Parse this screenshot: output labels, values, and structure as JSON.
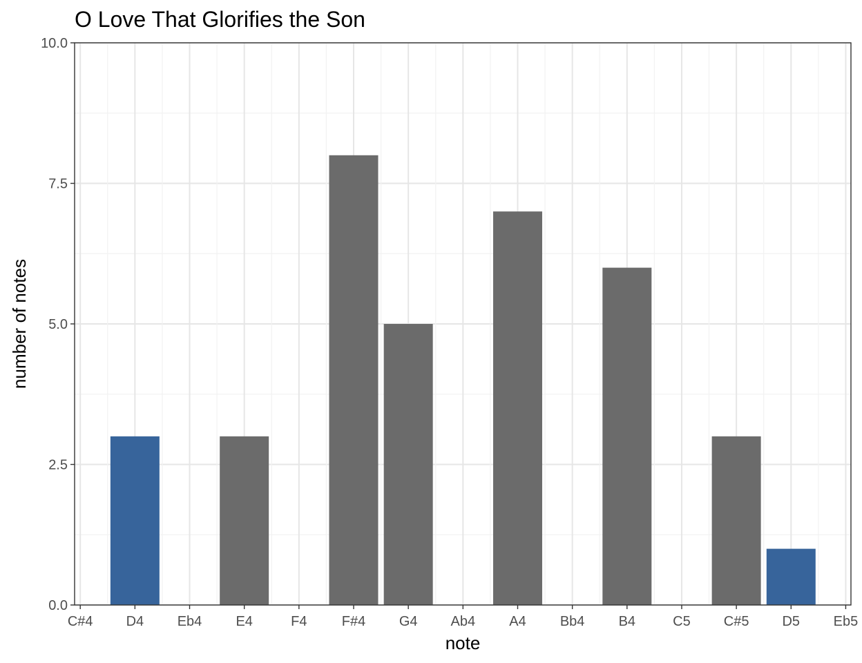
{
  "chart_data": {
    "type": "bar",
    "title": "O Love That Glorifies the Son",
    "xlabel": "note",
    "ylabel": "number of notes",
    "categories": [
      "C#4",
      "D4",
      "Eb4",
      "E4",
      "F4",
      "F#4",
      "G4",
      "Ab4",
      "A4",
      "Bb4",
      "B4",
      "C5",
      "C#5",
      "D5",
      "Eb5"
    ],
    "values": [
      0,
      3,
      0,
      3,
      0,
      8,
      5,
      0,
      7,
      0,
      6,
      0,
      3,
      1,
      0
    ],
    "highlighted": [
      false,
      true,
      false,
      false,
      false,
      false,
      false,
      false,
      false,
      false,
      false,
      false,
      false,
      true,
      false
    ],
    "ylim": [
      0,
      10
    ],
    "y_ticks": [
      0.0,
      2.5,
      5.0,
      7.5,
      10.0
    ],
    "y_tick_labels": [
      "0.0",
      "2.5",
      "5.0",
      "7.5",
      "10.0"
    ],
    "grid": true,
    "legend": "none",
    "colors": {
      "bar_default": "#6b6b6b",
      "bar_highlight": "#37649b",
      "grid_major": "#e6e6e6",
      "grid_minor": "#f2f2f2",
      "panel_border": "#333333",
      "tick_label": "#4d4d4d"
    }
  }
}
